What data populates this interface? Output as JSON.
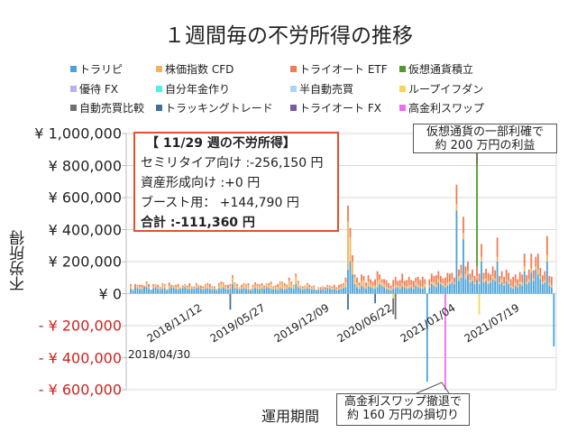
{
  "chart_data": {
    "type": "bar",
    "stacked": true,
    "title": "１週間毎の不労所得の推移",
    "xlabel": "運用期間",
    "ylabel": "不労所得",
    "ylim": [
      -600000,
      1000000
    ],
    "x_interval": "weekly",
    "x_start": "2018/04/30",
    "grid": true,
    "legend_position": "top",
    "y_ticks": [
      {
        "value": 1000000,
        "label": "¥ 1,000,000"
      },
      {
        "value": 800000,
        "label": "¥ 800,000"
      },
      {
        "value": 600000,
        "label": "¥ 600,000"
      },
      {
        "value": 400000,
        "label": "¥ 400,000"
      },
      {
        "value": 200000,
        "label": "¥ 200,000"
      },
      {
        "value": 0,
        "label": "¥ 0"
      },
      {
        "value": -200000,
        "label": "- ¥ 200,000"
      },
      {
        "value": -400000,
        "label": "- ¥ 400,000"
      },
      {
        "value": -600000,
        "label": "- ¥ 600,000"
      }
    ],
    "x_ticks": [
      {
        "week": 0,
        "label": "2018/04/30"
      },
      {
        "week": 28,
        "label": "2018/11/12"
      },
      {
        "week": 56,
        "label": "2019/05/27"
      },
      {
        "week": 84,
        "label": "2019/12/09"
      },
      {
        "week": 112,
        "label": "2020/06/22"
      },
      {
        "week": 140,
        "label": "2021/01/04"
      },
      {
        "week": 168,
        "label": "2021/07/19"
      }
    ],
    "legend": [
      {
        "name": "トラリピ",
        "color": "#4aa3d9"
      },
      {
        "name": "株価指数 CFD",
        "color": "#f6b25e"
      },
      {
        "name": "トライオート ETF",
        "color": "#ef7b56"
      },
      {
        "name": "仮想通貨積立",
        "color": "#4e9a2a"
      },
      {
        "name": "優待 FX",
        "color": "#b7b1ee"
      },
      {
        "name": "自分年金作り",
        "color": "#4ef0ef"
      },
      {
        "name": "半自動売買",
        "color": "#a9d6f5"
      },
      {
        "name": "ループイフダン",
        "color": "#f7d55a"
      },
      {
        "name": "自動売買比較",
        "color": "#707070"
      },
      {
        "name": "トラッキングトレード",
        "color": "#3f6f9f"
      },
      {
        "name": "トライオート FX",
        "color": "#7a5c9e"
      },
      {
        "name": "高金利スワップ",
        "color": "#f06cf0"
      }
    ],
    "series": [
      {
        "name": "トラリピ",
        "values": [
          30000,
          20000,
          40000,
          35000,
          25000,
          30000,
          45000,
          40000,
          30000,
          20000,
          35000,
          40000,
          30000,
          25000,
          30000,
          35000,
          20000,
          30000,
          40000,
          35000,
          30000,
          25000,
          30000,
          35000,
          40000,
          30000,
          25000,
          30000,
          30000,
          35000,
          40000,
          30000,
          25000,
          30000,
          35000,
          30000,
          25000,
          30000,
          20000,
          35000,
          30000,
          40000,
          30000,
          25000,
          30000,
          60000,
          35000,
          30000,
          25000,
          30000,
          35000,
          30000,
          25000,
          20000,
          30000,
          35000,
          30000,
          25000,
          35000,
          30000,
          40000,
          35000,
          30000,
          25000,
          30000,
          20000,
          35000,
          30000,
          25000,
          30000,
          40000,
          35000,
          30000,
          60000,
          40000,
          30000,
          25000,
          30000,
          35000,
          30000,
          25000,
          30000,
          20000,
          25000,
          25000,
          30000,
          20000,
          35000,
          30000,
          25000,
          30000,
          20000,
          25000,
          30000,
          35000,
          40000,
          150000,
          200000,
          120000,
          60000,
          40000,
          30000,
          50000,
          40000,
          30000,
          45000,
          40000,
          35000,
          30000,
          40000,
          60000,
          50000,
          40000,
          30000,
          25000,
          20000,
          30000,
          35000,
          40000,
          30000,
          45000,
          40000,
          30000,
          35000,
          40000,
          30000,
          50000,
          40000,
          35000,
          30000,
          40000,
          -550000,
          40000,
          60000,
          50000,
          40000,
          70000,
          60000,
          50000,
          40000,
          50000,
          60000,
          70000,
          60000,
          520000,
          80000,
          100000,
          340000,
          90000,
          120000,
          70000,
          80000,
          60000,
          90000,
          60000,
          200000,
          70000,
          80000,
          60000,
          70000,
          90000,
          80000,
          200000,
          60000,
          70000,
          50000,
          80000,
          60000,
          40000,
          30000,
          50000,
          40000,
          60000,
          50000,
          140000,
          60000,
          70000,
          130000,
          80000,
          150000,
          120000,
          90000,
          60000,
          70000,
          200000,
          50000,
          40000,
          -330000
        ]
      },
      {
        "name": "株価指数 CFD",
        "values": [
          20000,
          10000,
          0,
          15000,
          20000,
          10000,
          5000,
          25000,
          10000,
          0,
          15000,
          20000,
          10000,
          5000,
          30000,
          15000,
          10000,
          20000,
          5000,
          10000,
          15000,
          20000,
          10000,
          5000,
          15000,
          10000,
          20000,
          10000,
          10000,
          20000,
          15000,
          5000,
          10000,
          25000,
          20000,
          10000,
          15000,
          5000,
          10000,
          20000,
          30000,
          25000,
          15000,
          10000,
          20000,
          40000,
          30000,
          20000,
          15000,
          10000,
          20000,
          25000,
          30000,
          10000,
          15000,
          20000,
          20000,
          30000,
          15000,
          10000,
          25000,
          20000,
          30000,
          15000,
          10000,
          20000,
          30000,
          40000,
          25000,
          15000,
          40000,
          30000,
          20000,
          50000,
          30000,
          20000,
          10000,
          15000,
          20000,
          10000,
          15000,
          10000,
          5000,
          10000,
          5000,
          10000,
          5000,
          10000,
          15000,
          10000,
          5000,
          10000,
          15000,
          10000,
          20000,
          30000,
          300000,
          150000,
          80000,
          40000,
          30000,
          20000,
          30000,
          40000,
          20000,
          30000,
          20000,
          15000,
          20000,
          40000,
          30000,
          20000,
          20000,
          15000,
          10000,
          10000,
          15000,
          20000,
          10000,
          15000,
          20000,
          10000,
          15000,
          20000,
          15000,
          10000,
          20000,
          15000,
          10000,
          15000,
          20000,
          0,
          10000,
          15000,
          20000,
          15000,
          20000,
          10000,
          15000,
          10000,
          20000,
          15000,
          20000,
          10000,
          40000,
          30000,
          20000,
          40000,
          30000,
          20000,
          15000,
          20000,
          10000,
          20000,
          15000,
          30000,
          20000,
          15000,
          20000,
          10000,
          20000,
          15000,
          30000,
          10000,
          20000,
          15000,
          10000,
          20000,
          10000,
          15000,
          20000,
          10000,
          15000,
          20000,
          30000,
          15000,
          20000,
          30000,
          15000,
          20000,
          30000,
          20000,
          15000,
          10000,
          40000,
          20000,
          15000,
          0
        ]
      },
      {
        "name": "トライオート ETF",
        "values": [
          10000,
          0,
          20000,
          5000,
          10000,
          15000,
          0,
          10000,
          20000,
          5000,
          10000,
          0,
          15000,
          10000,
          5000,
          10000,
          0,
          20000,
          10000,
          5000,
          10000,
          15000,
          0,
          10000,
          5000,
          10000,
          20000,
          5000,
          5000,
          10000,
          0,
          15000,
          10000,
          5000,
          10000,
          20000,
          5000,
          10000,
          0,
          10000,
          15000,
          5000,
          10000,
          20000,
          10000,
          15000,
          5000,
          10000,
          0,
          15000,
          10000,
          5000,
          10000,
          0,
          10000,
          15000,
          10000,
          5000,
          15000,
          10000,
          0,
          10000,
          15000,
          5000,
          10000,
          20000,
          10000,
          5000,
          15000,
          10000,
          20000,
          10000,
          5000,
          15000,
          10000,
          0,
          10000,
          5000,
          10000,
          15000,
          5000,
          10000,
          0,
          5000,
          10000,
          5000,
          15000,
          10000,
          5000,
          10000,
          20000,
          10000,
          15000,
          20000,
          10000,
          30000,
          100000,
          60000,
          40000,
          20000,
          30000,
          20000,
          40000,
          30000,
          20000,
          40000,
          30000,
          25000,
          40000,
          60000,
          30000,
          20000,
          30000,
          40000,
          30000,
          20000,
          40000,
          50000,
          30000,
          40000,
          60000,
          30000,
          40000,
          50000,
          30000,
          40000,
          30000,
          50000,
          40000,
          60000,
          30000,
          0,
          40000,
          50000,
          40000,
          60000,
          50000,
          40000,
          30000,
          50000,
          60000,
          50000,
          40000,
          30000,
          120000,
          40000,
          60000,
          100000,
          50000,
          60000,
          40000,
          50000,
          40000,
          60000,
          50000,
          80000,
          40000,
          60000,
          50000,
          40000,
          60000,
          50000,
          120000,
          40000,
          50000,
          40000,
          60000,
          50000,
          40000,
          60000,
          50000,
          40000,
          60000,
          50000,
          80000,
          40000,
          60000,
          90000,
          50000,
          60000,
          100000,
          50000,
          40000,
          60000,
          120000,
          40000,
          50000,
          0
        ]
      }
    ],
    "sparse_series": [
      {
        "name": "仮想通貨積立",
        "points": [
          {
            "x": "2021/04/05",
            "y": 2000000
          }
        ]
      },
      {
        "name": "高金利スワップ",
        "points": [
          {
            "x": "2020/12/28",
            "y": -1600000
          }
        ]
      },
      {
        "name": "ループイフダン",
        "points": [
          {
            "x": "2021/04/12",
            "y": -130000
          },
          {
            "x": "2020/07/20",
            "y": -30000
          }
        ]
      },
      {
        "name": "自動売買比較",
        "points": [
          {
            "x": "2020/07/27",
            "y": -160000
          },
          {
            "x": "2020/07/20",
            "y": -100000
          }
        ]
      },
      {
        "name": "トラッキングトレード",
        "points": [
          {
            "x": "2019/03/04",
            "y": -100000
          },
          {
            "x": "2020/03/02",
            "y": -100000
          },
          {
            "x": "2020/05/25",
            "y": -60000
          }
        ]
      }
    ],
    "annotations": [
      {
        "text_lines": [
          "仮想通貨の一部利確で",
          "約 200 万円の利益"
        ]
      },
      {
        "text_lines": [
          "高金利スワップ撤退で",
          "約 160 万円の損切り"
        ]
      }
    ]
  },
  "summary_box": {
    "heading": "【 11/29 週の不労所得】",
    "line1": "セミリタイア向け :-256,150 円",
    "line2": "資産形成向け :+0 円",
    "line3": "ブースト用：  +144,790 円",
    "total": "合計 :-111,360 円"
  }
}
